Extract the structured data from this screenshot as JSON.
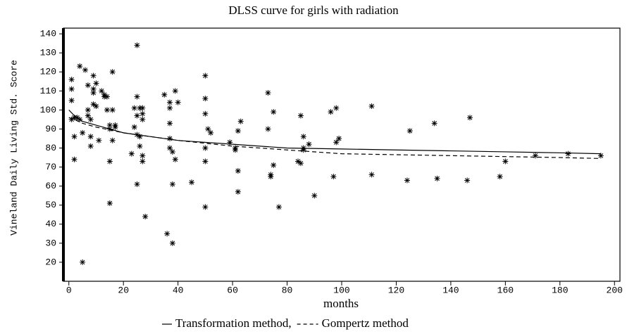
{
  "chart_data": {
    "type": "scatter",
    "title": "DLSS curve for girls with  radiation",
    "x_label": "months",
    "y_label": "Vineland Daily Living Std. Score",
    "xlim": [
      -2,
      202
    ],
    "ylim": [
      10,
      143
    ],
    "xticks": [
      0,
      20,
      40,
      60,
      80,
      100,
      120,
      140,
      160,
      180,
      200
    ],
    "yticks": [
      20,
      30,
      40,
      50,
      60,
      70,
      80,
      90,
      100,
      110,
      120,
      130,
      140
    ],
    "series": [
      {
        "type": "scatter",
        "color": "#000000",
        "x": [
          1,
          1,
          1,
          2,
          1,
          2,
          2,
          3,
          4,
          4,
          6,
          5,
          5,
          7,
          7,
          7,
          8,
          8,
          8,
          9,
          9,
          9,
          9,
          10,
          10,
          11,
          12,
          13,
          13,
          14,
          14,
          15,
          15,
          15,
          15,
          16,
          16,
          16,
          17,
          17,
          23,
          24,
          24,
          25,
          25,
          25,
          25,
          25,
          26,
          26,
          26,
          27,
          27,
          27,
          27,
          27,
          28,
          35,
          36,
          37,
          37,
          37,
          37,
          37,
          38,
          38,
          38,
          39,
          39,
          40,
          45,
          50,
          50,
          50,
          50,
          50,
          50,
          51,
          52,
          59,
          61,
          61,
          62,
          62,
          62,
          63,
          73,
          73,
          74,
          74,
          75,
          75,
          77,
          84,
          85,
          85,
          86,
          86,
          86,
          88,
          90,
          96,
          97,
          98,
          98,
          99,
          111,
          111,
          124,
          125,
          134,
          135,
          146,
          147,
          158,
          160,
          171,
          183,
          195
        ],
        "values": [
          116,
          111,
          105,
          96,
          95,
          86,
          74,
          96,
          95,
          123,
          121,
          88,
          20,
          113,
          100,
          97,
          95,
          86,
          81,
          118,
          111,
          109,
          103,
          114,
          102,
          84,
          110,
          107,
          108,
          107,
          100,
          92,
          90,
          73,
          51,
          100,
          120,
          84,
          91,
          92,
          77,
          101,
          91,
          134,
          107,
          97,
          87,
          61,
          101,
          86,
          81,
          101,
          98,
          95,
          76,
          73,
          44,
          108,
          35,
          104,
          101,
          93,
          85,
          80,
          78,
          61,
          30,
          110,
          74,
          104,
          62,
          118,
          106,
          98,
          80,
          73,
          49,
          90,
          88,
          83,
          79,
          80,
          68,
          57,
          89,
          94,
          109,
          90,
          66,
          65,
          99,
          71,
          49,
          73,
          97,
          72,
          86,
          80,
          79,
          82,
          55,
          99,
          65,
          101,
          83,
          85,
          102,
          66,
          63,
          89,
          93,
          64,
          63,
          96,
          65,
          73,
          76,
          77,
          76
        ]
      },
      {
        "type": "line",
        "name": "Transformation method,",
        "color": "#000000",
        "style": "solid",
        "x": [
          0,
          2,
          5,
          10,
          20,
          30,
          40,
          60,
          80,
          100,
          120,
          140,
          160,
          180,
          195
        ],
        "values": [
          100,
          97,
          94,
          92,
          88,
          86,
          84,
          82,
          80,
          79.5,
          79,
          78.5,
          78,
          77.5,
          77
        ]
      },
      {
        "type": "line",
        "name": "Gompertz method",
        "color": "#000000",
        "style": "dashed",
        "x": [
          0,
          2,
          5,
          10,
          20,
          30,
          40,
          60,
          80,
          100,
          120,
          140,
          160,
          180,
          195
        ],
        "values": [
          96,
          95,
          93,
          91,
          88,
          86,
          84,
          81,
          79,
          77,
          76.5,
          76,
          75.5,
          75,
          74.5
        ]
      }
    ]
  }
}
